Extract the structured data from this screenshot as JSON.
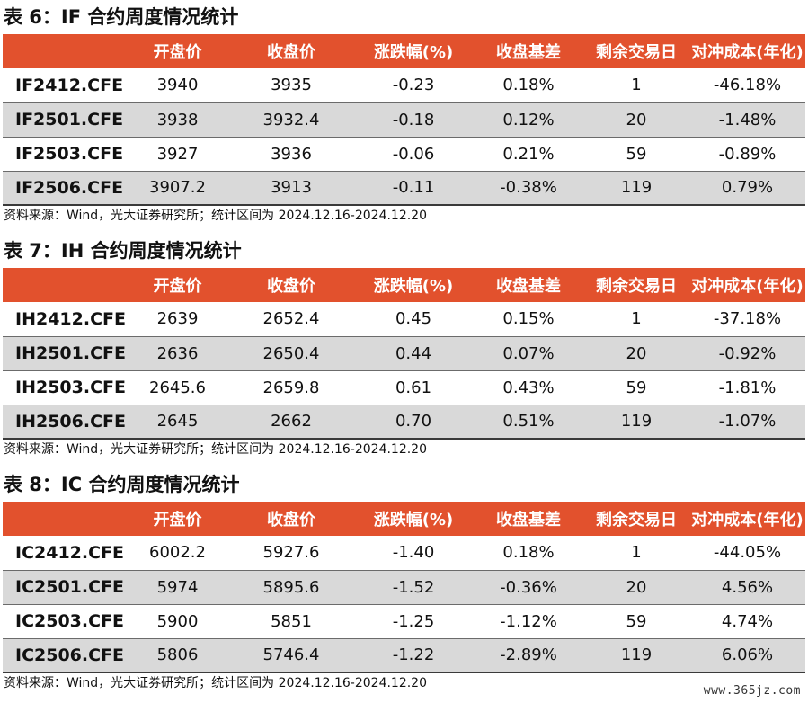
{
  "headers": [
    "",
    "开盘价",
    "收盘价",
    "涨跌幅(%)",
    "收盘基差",
    "剩余交易日",
    "对冲成本(年化)"
  ],
  "tables": [
    {
      "title": "表 6：IF 合约周度情况统计",
      "source": "资料来源：Wind，光大证券研究所；统计区间为 2024.12.16-2024.12.20",
      "rows": [
        [
          "IF2412.CFE",
          "3940",
          "3935",
          "-0.23",
          "0.18%",
          "1",
          "-46.18%"
        ],
        [
          "IF2501.CFE",
          "3938",
          "3932.4",
          "-0.18",
          "0.12%",
          "20",
          "-1.48%"
        ],
        [
          "IF2503.CFE",
          "3927",
          "3936",
          "-0.06",
          "0.21%",
          "59",
          "-0.89%"
        ],
        [
          "IF2506.CFE",
          "3907.2",
          "3913",
          "-0.11",
          "-0.38%",
          "119",
          "0.79%"
        ]
      ]
    },
    {
      "title": "表 7：IH 合约周度情况统计",
      "source": "资料来源：Wind，光大证券研究所；统计区间为 2024.12.16-2024.12.20",
      "rows": [
        [
          "IH2412.CFE",
          "2639",
          "2652.4",
          "0.45",
          "0.15%",
          "1",
          "-37.18%"
        ],
        [
          "IH2501.CFE",
          "2636",
          "2650.4",
          "0.44",
          "0.07%",
          "20",
          "-0.92%"
        ],
        [
          "IH2503.CFE",
          "2645.6",
          "2659.8",
          "0.61",
          "0.43%",
          "59",
          "-1.81%"
        ],
        [
          "IH2506.CFE",
          "2645",
          "2662",
          "0.70",
          "0.51%",
          "119",
          "-1.07%"
        ]
      ]
    },
    {
      "title": "表 8：IC 合约周度情况统计",
      "source": "资料来源：Wind，光大证券研究所；统计区间为 2024.12.16-2024.12.20",
      "rows": [
        [
          "IC2412.CFE",
          "6002.2",
          "5927.6",
          "-1.40",
          "0.18%",
          "1",
          "-44.05%"
        ],
        [
          "IC2501.CFE",
          "5974",
          "5895.6",
          "-1.52",
          "-0.36%",
          "20",
          "4.56%"
        ],
        [
          "IC2503.CFE",
          "5900",
          "5851",
          "-1.25",
          "-1.12%",
          "59",
          "4.74%"
        ],
        [
          "IC2506.CFE",
          "5806",
          "5746.4",
          "-1.22",
          "-2.89%",
          "119",
          "6.06%"
        ]
      ]
    }
  ],
  "watermark": "www.365jz.com",
  "colors": {
    "header_bg": "#e2512d",
    "header_text": "#ffffff",
    "shaded_row": "#d9d9d9"
  }
}
